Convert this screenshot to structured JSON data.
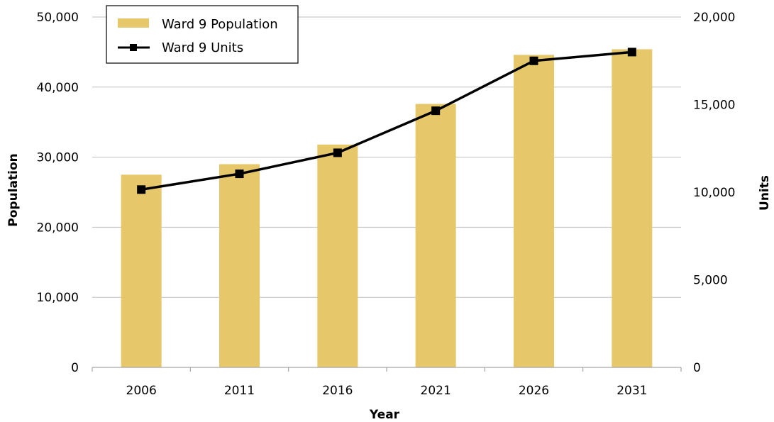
{
  "chart_data": {
    "type": "bar",
    "categories": [
      "2006",
      "2011",
      "2016",
      "2021",
      "2026",
      "2031"
    ],
    "series": [
      {
        "name": "Ward 9 Population",
        "type": "bar",
        "axis": "left",
        "color": "#E6C76A",
        "values": [
          27500,
          29000,
          31800,
          37600,
          44600,
          45400
        ]
      },
      {
        "name": "Ward 9 Units",
        "type": "line",
        "axis": "right",
        "color": "#000000",
        "values": [
          10150,
          11050,
          12250,
          14650,
          17500,
          18000
        ]
      }
    ],
    "xlabel": "Year",
    "ylabel": "Population",
    "y2label": "Units",
    "ylim": [
      0,
      50000
    ],
    "y2lim": [
      0,
      20000
    ],
    "yticks": [
      "0",
      "10,000",
      "20,000",
      "30,000",
      "40,000",
      "50,000"
    ],
    "y2ticks": [
      "0",
      "5,000",
      "10,000",
      "15,000",
      "20,000"
    ],
    "grid": true,
    "legend_position": "top-left"
  }
}
